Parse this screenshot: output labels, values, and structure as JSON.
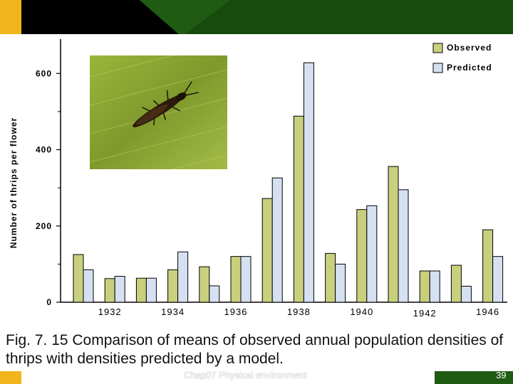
{
  "chart_data": {
    "type": "bar",
    "ylabel": "Number of thrips per flower",
    "xlabel": "",
    "yticks": [
      0,
      200,
      400,
      600
    ],
    "ylim": [
      0,
      690
    ],
    "xtick_labels": [
      "1932",
      "1934",
      "1936",
      "1938",
      "1940",
      "1942",
      "1946"
    ],
    "series": [
      {
        "name": "Observed",
        "color": "#c9d07d",
        "values": [
          125,
          62,
          63,
          85,
          93,
          120,
          272,
          488,
          128,
          243,
          356,
          82,
          97,
          190
        ]
      },
      {
        "name": "Predicted",
        "color": "#d6e0f3",
        "values": [
          85,
          68,
          63,
          132,
          43,
          120,
          326,
          628,
          100,
          253,
          295,
          82,
          42,
          120
        ]
      }
    ],
    "legend_position": "top-right",
    "grid": false
  },
  "caption": "Fig. 7. 15 Comparison of means of observed annual population densities of thrips with densities predicted by a model.",
  "footer": "Chap07 Physical environment",
  "slide_number": "39"
}
